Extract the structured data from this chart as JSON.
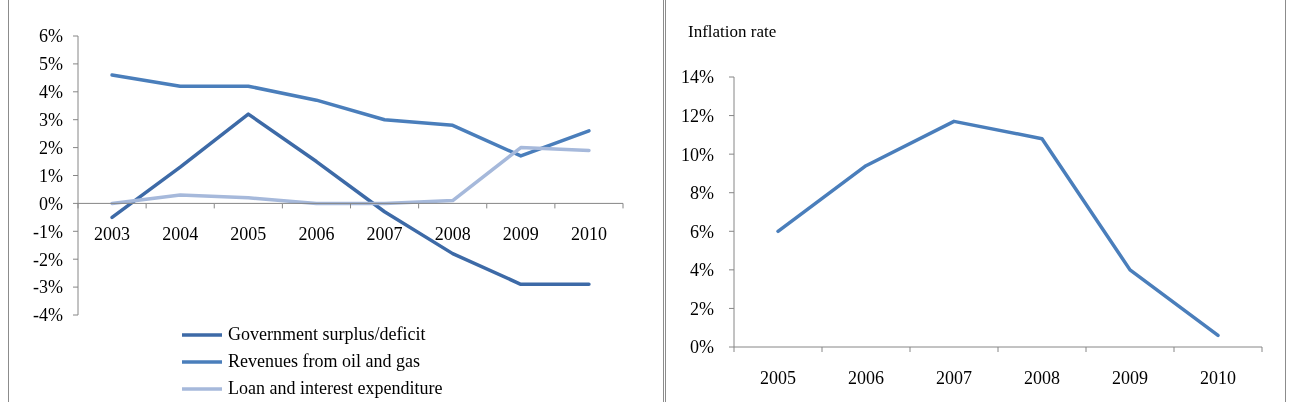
{
  "chart_data": [
    {
      "type": "line",
      "categories": [
        "2003",
        "2004",
        "2005",
        "2006",
        "2007",
        "2008",
        "2009",
        "2010"
      ],
      "series": [
        {
          "name": "Government surplus/deficit",
          "color": "#3d6aa7",
          "values": [
            -0.5,
            1.3,
            3.2,
            1.5,
            -0.3,
            -1.8,
            -2.9,
            -2.9
          ]
        },
        {
          "name": "Revenues from oil and gas",
          "color": "#4a7ebb",
          "values": [
            4.6,
            4.2,
            4.2,
            3.7,
            3.0,
            2.8,
            1.7,
            2.6
          ]
        },
        {
          "name": "Loan and interest expenditure",
          "color": "#a6b9db",
          "values": [
            0,
            0.3,
            0.2,
            0,
            0,
            0.1,
            2.0,
            1.9
          ]
        }
      ],
      "ylim": [
        -4,
        6
      ],
      "yticks": [
        {
          "value": -4,
          "label": "-4%"
        },
        {
          "value": -3,
          "label": "-3%"
        },
        {
          "value": -2,
          "label": "-2%"
        },
        {
          "value": -1,
          "label": "-1%"
        },
        {
          "value": 0,
          "label": "0%"
        },
        {
          "value": 1,
          "label": "1%"
        },
        {
          "value": 2,
          "label": "2%"
        },
        {
          "value": 3,
          "label": "3%"
        },
        {
          "value": 4,
          "label": "4%"
        },
        {
          "value": 5,
          "label": "5%"
        },
        {
          "value": 6,
          "label": "6%"
        }
      ],
      "legend": "bottom",
      "marker": "none",
      "line_style": "solid"
    },
    {
      "type": "line",
      "title": "Inflation rate",
      "categories": [
        "2005",
        "2006",
        "2007",
        "2008",
        "2009",
        "2010"
      ],
      "values": [
        6.0,
        9.4,
        11.7,
        10.8,
        4.0,
        0.6
      ],
      "color": "#4a7ebb",
      "ylim": [
        0,
        14
      ],
      "yticks": [
        {
          "value": 0,
          "label": "0%"
        },
        {
          "value": 2,
          "label": "2%"
        },
        {
          "value": 4,
          "label": "4%"
        },
        {
          "value": 6,
          "label": "6%"
        },
        {
          "value": 8,
          "label": "8%"
        },
        {
          "value": 10,
          "label": "10%"
        },
        {
          "value": 12,
          "label": "12%"
        },
        {
          "value": 14,
          "label": "14%"
        }
      ],
      "marker": "none",
      "line_style": "solid"
    }
  ]
}
